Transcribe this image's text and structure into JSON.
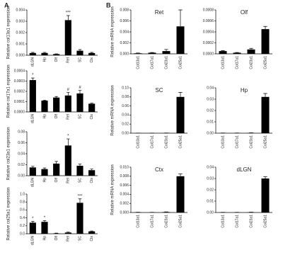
{
  "panel_labels": [
    "A",
    "B"
  ],
  "chart_data": [
    {
      "type": "bar",
      "ylabel": "Relative col13a1 expression",
      "categories": [
        "dLGN",
        "Hp",
        "Olf",
        "Ret",
        "SC",
        "Ctx"
      ],
      "color": "#000000",
      "values": [
        0.0002,
        0.0002,
        0.0001,
        0.0031,
        0.0004,
        0.0002
      ],
      "errors": [
        5e-05,
        5e-05,
        3e-05,
        0.0004,
        0.0001,
        5e-05
      ],
      "annotations": [
        null,
        null,
        null,
        "***",
        null,
        null
      ],
      "ylim": [
        0,
        0.004
      ],
      "yticks": [
        {
          "value": 0,
          "label": "0.000"
        },
        0.001,
        0.002,
        0.003,
        0.004
      ]
    },
    {
      "type": "bar",
      "ylabel": "Relative col17a1 expression",
      "categories": [
        "dLGN",
        "Hp",
        "Olf",
        "Ret",
        "SC",
        "Ctx"
      ],
      "color": "#000000",
      "values": [
        0.00031,
        0.00011,
        0.00014,
        0.00016,
        0.00018,
        8e-05
      ],
      "errors": [
        2e-05,
        5e-06,
        1e-05,
        3e-05,
        3e-05,
        5e-06
      ],
      "annotations": [
        "*",
        null,
        null,
        "#",
        "#",
        null
      ],
      "ylim": [
        0,
        0.0004
      ],
      "yticks": [
        {
          "value": 0,
          "label": "0.0000"
        },
        0.0001,
        0.0002,
        0.0003,
        0.0004
      ]
    },
    {
      "type": "bar",
      "ylabel": "Relative col23a1 expression",
      "categories": [
        "dLGN",
        "Hp",
        "Olf",
        "Ret",
        "SC",
        "Ctx"
      ],
      "color": "#000000",
      "values": [
        0.015,
        0.012,
        0.022,
        0.055,
        0.018,
        0.01
      ],
      "errors": [
        0.002,
        0.002,
        0.004,
        0.012,
        0.003,
        0.002
      ],
      "annotations": [
        null,
        null,
        null,
        "*",
        null,
        null
      ],
      "ylim": [
        0,
        0.08
      ],
      "yticks": [
        {
          "value": 0,
          "label": "0.00"
        },
        0.02,
        0.04,
        0.06,
        0.08
      ]
    },
    {
      "type": "bar",
      "ylabel": "Relative col25a1 expression",
      "categories": [
        "dLGN",
        "Hp",
        "Olf",
        "Ret",
        "SC",
        "Ctx"
      ],
      "color": "#000000",
      "values": [
        0.28,
        0.3,
        0.01,
        0.03,
        0.78,
        0.06
      ],
      "errors": [
        0.03,
        0.03,
        0.005,
        0.01,
        0.1,
        0.01
      ],
      "annotations": [
        "*",
        "*",
        null,
        null,
        "***",
        null
      ],
      "ylim": [
        0,
        1
      ],
      "yticks": [
        {
          "value": 0,
          "label": "0.0"
        },
        0.2,
        0.4,
        0.6,
        0.8,
        {
          "value": 1,
          "label": "1.0"
        }
      ]
    },
    {
      "type": "bar",
      "title": "Ret",
      "ylabel": "Relative mRNA expression",
      "categories": [
        "Col13a1",
        "Col17a1",
        "Col23a1",
        "Col25a1"
      ],
      "color": "#000000",
      "values": [
        0.0001,
        0.0002,
        0.0005,
        0.005
      ],
      "errors": [
        5e-05,
        5e-05,
        0.0003,
        0.003
      ],
      "ylim": [
        0,
        0.008
      ],
      "yticks": [
        {
          "value": 0,
          "label": "0.000"
        },
        0.002,
        0.004,
        0.006,
        0.008
      ]
    },
    {
      "type": "bar",
      "title": "Olf",
      "categories": [
        "Col13a1",
        "Col17a1",
        "Col23a1",
        "Col25a1"
      ],
      "color": "#000000",
      "values": [
        5e-05,
        2e-05,
        8e-05,
        0.00045
      ],
      "errors": [
        1e-05,
        5e-06,
        2e-05,
        5e-05
      ],
      "ylim": [
        0,
        0.0008
      ],
      "yticks": [
        {
          "value": 0,
          "label": "0.0000"
        },
        0.0002,
        0.0004,
        0.0006,
        0.0008
      ]
    },
    {
      "type": "bar",
      "title": "SC",
      "ylabel": "Relative mRNA expression",
      "categories": [
        "Col13a1",
        "Col17a1",
        "Col23a1",
        "Col25a1"
      ],
      "color": "#000000",
      "values": [
        0.0002,
        0.0001,
        0.0003,
        0.08
      ],
      "errors": [
        0.0001,
        0.0001,
        0.0001,
        0.01
      ],
      "ylim": [
        0,
        0.1
      ],
      "yticks": [
        {
          "value": 0,
          "label": "0.00"
        },
        0.02,
        0.04,
        0.06,
        0.08,
        {
          "value": 0.1,
          "label": "0.10"
        }
      ]
    },
    {
      "type": "bar",
      "title": "Hp",
      "categories": [
        "Col13a1",
        "Col17a1",
        "Col23a1",
        "Col25a1"
      ],
      "color": "#000000",
      "values": [
        0.0001,
        0.0001,
        0.0002,
        0.032
      ],
      "errors": [
        5e-05,
        5e-05,
        0.0001,
        0.003
      ],
      "ylim": [
        0,
        0.04
      ],
      "yticks": [
        {
          "value": 0,
          "label": "0.00"
        },
        0.01,
        0.02,
        0.03,
        0.04
      ]
    },
    {
      "type": "bar",
      "title": "Ctx",
      "ylabel": "Relative mRNA expression",
      "categories": [
        "Col13a1",
        "Col17a1",
        "Col23a1",
        "Col25a1"
      ],
      "color": "#000000",
      "values": [
        5e-05,
        3e-05,
        0.0001,
        0.008
      ],
      "errors": [
        2e-05,
        2e-05,
        5e-05,
        0.0005
      ],
      "ylim": [
        0,
        0.01
      ],
      "yticks": [
        {
          "value": 0,
          "label": "0.000"
        },
        0.002,
        0.004,
        0.006,
        0.008,
        {
          "value": 0.01,
          "label": "0.010"
        }
      ]
    },
    {
      "type": "bar",
      "title": "dLGN",
      "categories": [
        "Col13a1",
        "Col17a1",
        "Col23a1",
        "Col25a1"
      ],
      "color": "#000000",
      "values": [
        0.0001,
        0.0001,
        0.0002,
        0.03
      ],
      "errors": [
        5e-05,
        5e-05,
        0.0001,
        0.0015
      ],
      "ylim": [
        0,
        0.04
      ],
      "yticks": [
        {
          "value": 0,
          "label": "0.00"
        },
        0.01,
        0.02,
        0.03,
        0.04
      ]
    }
  ]
}
